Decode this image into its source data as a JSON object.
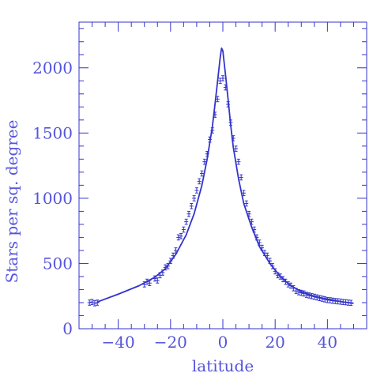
{
  "chart_data": {
    "type": "line",
    "title": "",
    "xlabel": "latitude",
    "ylabel": "Stars per sq. degree",
    "xlim": [
      -55,
      55
    ],
    "ylim": [
      0,
      2350
    ],
    "x_ticks": [
      -40,
      -20,
      0,
      20,
      40
    ],
    "x_tick_labels": [
      "−40",
      "−20",
      "0",
      "20",
      "40"
    ],
    "y_ticks": [
      0,
      500,
      1000,
      1500,
      2000
    ],
    "y_tick_labels": [
      "0",
      "500",
      "1000",
      "1500",
      "2000"
    ],
    "grid": false,
    "legend": "none",
    "color": "#3333cc",
    "series": [
      {
        "kind": "model-curve",
        "x": [
          -48,
          -40,
          -32,
          -26,
          -22,
          -18,
          -14,
          -11,
          -8,
          -6,
          -4,
          -3,
          -2,
          -1,
          -0.5,
          0,
          1,
          2,
          3,
          4,
          6,
          8,
          11,
          14,
          18,
          22,
          26,
          30,
          34,
          38,
          42,
          46,
          50
        ],
        "y": [
          205,
          265,
          330,
          395,
          460,
          570,
          720,
          880,
          1100,
          1300,
          1550,
          1720,
          1900,
          2080,
          2150,
          2130,
          1950,
          1760,
          1560,
          1390,
          1150,
          960,
          780,
          630,
          500,
          400,
          330,
          285,
          255,
          235,
          220,
          205,
          195
        ]
      },
      {
        "kind": "measurements-with-error-bars",
        "x": [
          -51,
          -50,
          -49,
          -48,
          -30,
          -29,
          -28,
          -26,
          -25,
          -24,
          -23,
          -22,
          -21,
          -20,
          -19,
          -18,
          -17,
          -16,
          -15,
          -14,
          -13,
          -12,
          -11,
          -10,
          -9,
          -8,
          -7,
          -6,
          -5,
          -4,
          -3,
          -2,
          -1,
          0,
          1,
          2,
          3,
          4,
          5,
          6,
          7,
          8,
          9,
          10,
          11,
          12,
          13,
          14,
          15,
          16,
          17,
          18,
          19,
          20,
          21,
          22,
          23,
          24,
          25,
          26,
          27,
          28,
          29,
          30,
          31,
          32,
          33,
          34,
          35,
          36,
          37,
          38,
          39,
          40,
          41,
          42,
          43,
          44,
          45,
          46,
          47,
          48,
          49
        ],
        "y": [
          200,
          205,
          195,
          200,
          340,
          360,
          350,
          385,
          370,
          410,
          430,
          470,
          480,
          520,
          560,
          600,
          700,
          710,
          760,
          820,
          880,
          940,
          1000,
          1060,
          1130,
          1190,
          1280,
          1340,
          1450,
          1520,
          1640,
          1760,
          1900,
          1920,
          1850,
          1720,
          1580,
          1460,
          1380,
          1280,
          1160,
          1040,
          960,
          880,
          820,
          760,
          700,
          660,
          620,
          580,
          560,
          520,
          480,
          440,
          410,
          400,
          380,
          360,
          340,
          330,
          310,
          290,
          280,
          275,
          270,
          260,
          255,
          250,
          245,
          240,
          235,
          230,
          225,
          220,
          218,
          215,
          212,
          210,
          208,
          205,
          203,
          200,
          198
        ],
        "error": 20
      }
    ]
  }
}
